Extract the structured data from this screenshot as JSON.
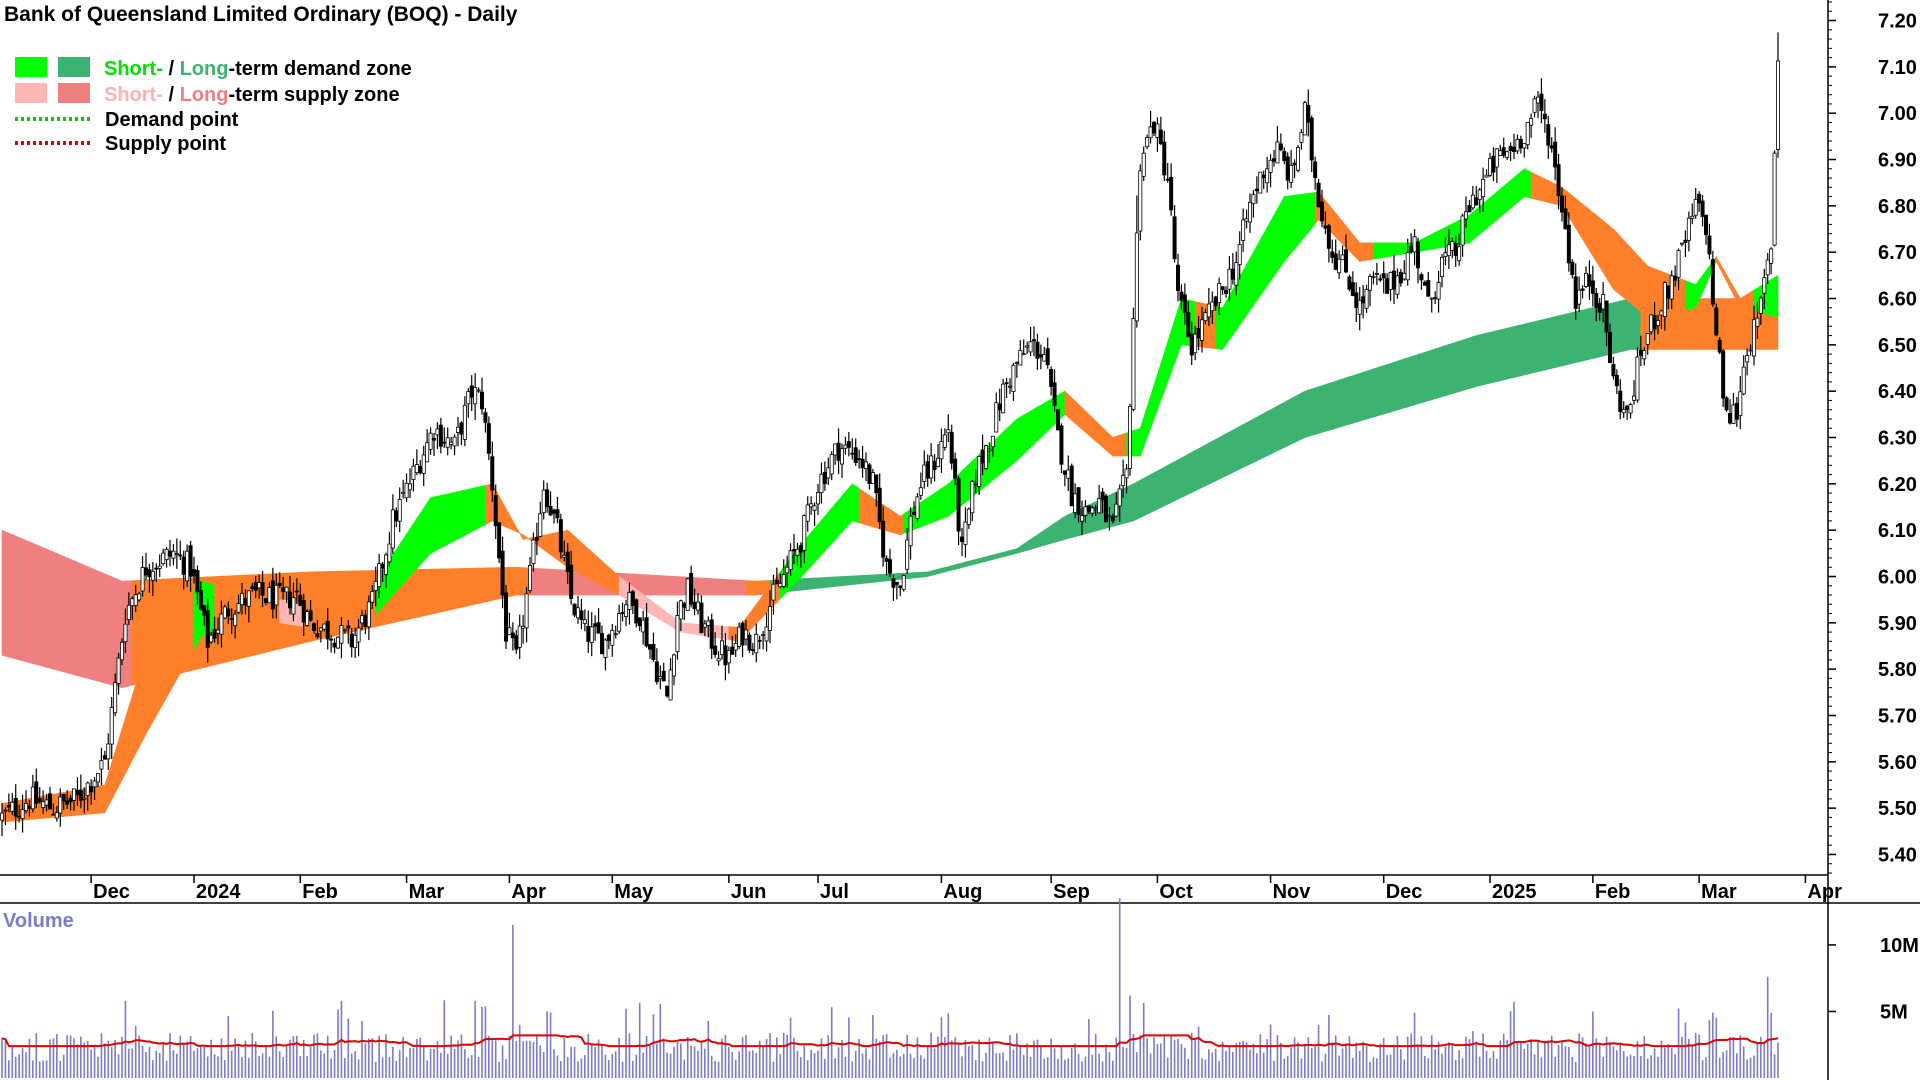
{
  "chart_data": {
    "type": "candlestick",
    "title": "Bank of Queensland Limited Ordinary (BOQ) - Daily",
    "legend": {
      "demand": {
        "short": "Short-",
        "sep": " / ",
        "long": "Long",
        "rest": "-term demand zone"
      },
      "supply": {
        "short": "Short-",
        "sep": " / ",
        "long": "Long",
        "rest": "-term supply zone"
      },
      "demand_point": "Demand point",
      "supply_point": "Supply point"
    },
    "colors": {
      "short_demand": "#00ff00",
      "long_demand": "#3cb371",
      "short_supply": "#ffb6b6",
      "long_supply": "#f08080",
      "short_zone_orange": "#ff7f2a",
      "demand_point": "#00cc00",
      "supply_point": "#e00000",
      "volume_bar": "#7b7bc8",
      "volume_avg": "#e00000",
      "candle": "#000000"
    },
    "price_axis": {
      "ylim": [
        5.36,
        7.24
      ],
      "ticks": [
        "7.20",
        "7.10",
        "7.00",
        "6.90",
        "6.80",
        "6.70",
        "6.60",
        "6.50",
        "6.40",
        "6.30",
        "6.20",
        "6.10",
        "6.00",
        "5.90",
        "5.80",
        "5.70",
        "5.60",
        "5.50",
        "5.40"
      ]
    },
    "months": [
      "Dec",
      "2024",
      "Feb",
      "Mar",
      "Apr",
      "May",
      "Jun",
      "Jul",
      "Aug",
      "Sep",
      "Oct",
      "Nov",
      "Dec",
      "2025",
      "Feb",
      "Mar",
      "Apr"
    ],
    "volume": {
      "label": "Volume",
      "ticks": [
        "10M",
        "5M"
      ],
      "ylim_millions": [
        0,
        13
      ]
    },
    "price_anchors": [
      [
        0,
        5.48
      ],
      [
        8,
        5.52
      ],
      [
        15,
        5.5
      ],
      [
        22,
        5.52
      ],
      [
        30,
        5.6
      ],
      [
        36,
        5.92
      ],
      [
        42,
        6.02
      ],
      [
        50,
        6.05
      ],
      [
        55,
        6.02
      ],
      [
        60,
        5.86
      ],
      [
        66,
        5.93
      ],
      [
        74,
        5.96
      ],
      [
        82,
        5.95
      ],
      [
        86,
        5.96
      ],
      [
        90,
        5.9
      ],
      [
        96,
        5.88
      ],
      [
        102,
        5.86
      ],
      [
        108,
        5.94
      ],
      [
        114,
        6.12
      ],
      [
        120,
        6.22
      ],
      [
        126,
        6.32
      ],
      [
        132,
        6.28
      ],
      [
        137,
        6.4
      ],
      [
        140,
        6.38
      ],
      [
        143,
        6.2
      ],
      [
        147,
        5.88
      ],
      [
        150,
        5.82
      ],
      [
        154,
        6.0
      ],
      [
        158,
        6.2
      ],
      [
        162,
        6.1
      ],
      [
        166,
        5.95
      ],
      [
        170,
        5.88
      ],
      [
        176,
        5.86
      ],
      [
        182,
        5.95
      ],
      [
        186,
        5.92
      ],
      [
        190,
        5.82
      ],
      [
        194,
        5.74
      ],
      [
        197,
        5.92
      ],
      [
        200,
        5.97
      ],
      [
        204,
        5.9
      ],
      [
        208,
        5.85
      ],
      [
        212,
        5.82
      ],
      [
        216,
        5.88
      ],
      [
        220,
        5.86
      ],
      [
        224,
        5.94
      ],
      [
        228,
        6.0
      ],
      [
        233,
        6.08
      ],
      [
        238,
        6.2
      ],
      [
        244,
        6.28
      ],
      [
        250,
        6.26
      ],
      [
        254,
        6.2
      ],
      [
        258,
        6.02
      ],
      [
        262,
        5.98
      ],
      [
        265,
        6.12
      ],
      [
        268,
        6.2
      ],
      [
        272,
        6.25
      ],
      [
        276,
        6.32
      ],
      [
        280,
        6.05
      ],
      [
        284,
        6.22
      ],
      [
        288,
        6.3
      ],
      [
        292,
        6.4
      ],
      [
        296,
        6.46
      ],
      [
        300,
        6.5
      ],
      [
        304,
        6.48
      ],
      [
        308,
        6.3
      ],
      [
        312,
        6.18
      ],
      [
        316,
        6.14
      ],
      [
        320,
        6.16
      ],
      [
        324,
        6.1
      ],
      [
        328,
        6.22
      ],
      [
        332,
        6.9
      ],
      [
        336,
        6.98
      ],
      [
        340,
        6.86
      ],
      [
        343,
        6.6
      ],
      [
        347,
        6.5
      ],
      [
        351,
        6.55
      ],
      [
        356,
        6.62
      ],
      [
        360,
        6.68
      ],
      [
        364,
        6.8
      ],
      [
        368,
        6.88
      ],
      [
        372,
        6.92
      ],
      [
        376,
        6.86
      ],
      [
        380,
        7.0
      ],
      [
        384,
        6.82
      ],
      [
        388,
        6.7
      ],
      [
        392,
        6.66
      ],
      [
        396,
        6.58
      ],
      [
        400,
        6.64
      ],
      [
        404,
        6.62
      ],
      [
        408,
        6.66
      ],
      [
        412,
        6.72
      ],
      [
        416,
        6.58
      ],
      [
        420,
        6.68
      ],
      [
        424,
        6.7
      ],
      [
        428,
        6.8
      ],
      [
        432,
        6.85
      ],
      [
        436,
        6.9
      ],
      [
        440,
        6.92
      ],
      [
        444,
        6.96
      ],
      [
        448,
        7.02
      ],
      [
        451,
        6.96
      ],
      [
        455,
        6.8
      ],
      [
        459,
        6.6
      ],
      [
        463,
        6.64
      ],
      [
        467,
        6.58
      ],
      [
        470,
        6.42
      ],
      [
        474,
        6.34
      ],
      [
        478,
        6.48
      ],
      [
        482,
        6.56
      ],
      [
        486,
        6.62
      ],
      [
        490,
        6.7
      ],
      [
        494,
        6.8
      ],
      [
        497,
        6.76
      ],
      [
        500,
        6.52
      ],
      [
        503,
        6.34
      ],
      [
        506,
        6.36
      ],
      [
        509,
        6.5
      ],
      [
        512,
        6.54
      ],
      [
        516,
        6.72
      ],
      [
        518,
        7.12
      ]
    ],
    "zone_anchors": {
      "long_upper": [
        [
          0,
          6.1
        ],
        [
          35,
          5.99
        ],
        [
          90,
          6.01
        ],
        [
          150,
          6.02
        ],
        [
          220,
          5.99
        ],
        [
          270,
          6.01
        ],
        [
          296,
          6.06
        ],
        [
          310,
          6.13
        ],
        [
          330,
          6.2
        ],
        [
          380,
          6.4
        ],
        [
          430,
          6.52
        ],
        [
          475,
          6.6
        ],
        [
          518,
          6.6
        ]
      ],
      "long_lower": [
        [
          0,
          5.83
        ],
        [
          35,
          5.76
        ],
        [
          90,
          5.86
        ],
        [
          150,
          5.96
        ],
        [
          220,
          5.96
        ],
        [
          270,
          6.0
        ],
        [
          296,
          6.05
        ],
        [
          310,
          6.08
        ],
        [
          330,
          6.12
        ],
        [
          380,
          6.3
        ],
        [
          430,
          6.41
        ],
        [
          475,
          6.49
        ],
        [
          518,
          6.49
        ]
      ],
      "short_upper": [
        [
          0,
          5.51
        ],
        [
          30,
          5.55
        ],
        [
          42,
          5.84
        ],
        [
          58,
          5.99
        ],
        [
          72,
          5.96
        ],
        [
          90,
          5.94
        ],
        [
          108,
          5.98
        ],
        [
          125,
          6.17
        ],
        [
          143,
          6.2
        ],
        [
          152,
          6.08
        ],
        [
          165,
          6.1
        ],
        [
          180,
          6.0
        ],
        [
          198,
          5.9
        ],
        [
          215,
          5.89
        ],
        [
          232,
          6.06
        ],
        [
          248,
          6.2
        ],
        [
          262,
          6.13
        ],
        [
          276,
          6.2
        ],
        [
          296,
          6.34
        ],
        [
          310,
          6.4
        ],
        [
          324,
          6.3
        ],
        [
          332,
          6.32
        ],
        [
          344,
          6.6
        ],
        [
          356,
          6.58
        ],
        [
          374,
          6.82
        ],
        [
          384,
          6.83
        ],
        [
          396,
          6.72
        ],
        [
          412,
          6.72
        ],
        [
          428,
          6.78
        ],
        [
          444,
          6.88
        ],
        [
          455,
          6.84
        ],
        [
          470,
          6.75
        ],
        [
          480,
          6.67
        ],
        [
          494,
          6.63
        ],
        [
          500,
          6.69
        ],
        [
          507,
          6.6
        ],
        [
          518,
          6.65
        ]
      ],
      "short_lower": [
        [
          0,
          5.47
        ],
        [
          30,
          5.49
        ],
        [
          42,
          5.66
        ],
        [
          58,
          5.87
        ],
        [
          72,
          5.91
        ],
        [
          90,
          5.89
        ],
        [
          108,
          5.91
        ],
        [
          125,
          6.05
        ],
        [
          143,
          6.12
        ],
        [
          152,
          6.09
        ],
        [
          165,
          6.02
        ],
        [
          180,
          5.96
        ],
        [
          198,
          5.88
        ],
        [
          215,
          5.86
        ],
        [
          232,
          5.99
        ],
        [
          248,
          6.12
        ],
        [
          262,
          6.09
        ],
        [
          276,
          6.13
        ],
        [
          296,
          6.25
        ],
        [
          310,
          6.35
        ],
        [
          324,
          6.26
        ],
        [
          332,
          6.26
        ],
        [
          344,
          6.5
        ],
        [
          356,
          6.49
        ],
        [
          374,
          6.68
        ],
        [
          384,
          6.77
        ],
        [
          396,
          6.68
        ],
        [
          412,
          6.7
        ],
        [
          428,
          6.72
        ],
        [
          444,
          6.82
        ],
        [
          455,
          6.8
        ],
        [
          470,
          6.62
        ],
        [
          480,
          6.56
        ],
        [
          494,
          6.58
        ],
        [
          500,
          6.68
        ],
        [
          507,
          6.58
        ],
        [
          518,
          6.56
        ]
      ]
    },
    "volume_spikes": [
      [
        36,
        5.8
      ],
      [
        149,
        11.5
      ],
      [
        159,
        5.0
      ],
      [
        182,
        5.2
      ],
      [
        326,
        13.5
      ],
      [
        329,
        6.2
      ],
      [
        515,
        7.6
      ]
    ]
  }
}
